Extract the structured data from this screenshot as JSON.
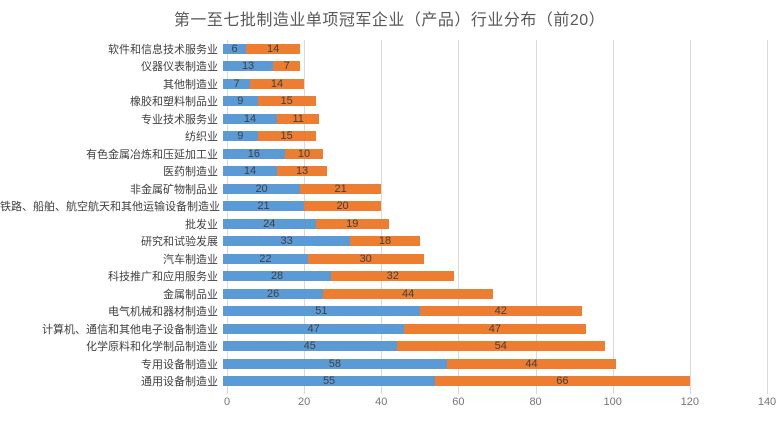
{
  "chart_data": {
    "type": "bar",
    "orientation": "horizontal",
    "stacked": true,
    "title": "第一至七批制造业单项冠军企业（产品）行业分布（前20）",
    "categories": [
      "软件和信息技术服务业",
      "仪器仪表制造业",
      "其他制造业",
      "橡胶和塑料制品业",
      "专业技术服务业",
      "纺织业",
      "有色金属冶炼和压延加工业",
      "医药制造业",
      "非金属矿物制品业",
      "铁路、船舶、航空航天和其他运输设备制造业",
      "批发业",
      "研究和试验发展",
      "汽车制造业",
      "科技推广和应用服务业",
      "金属制品业",
      "电气机械和器材制造业",
      "计算机、通信和其他电子设备制造业",
      "化学原料和化学制品制造业",
      "专用设备制造业",
      "通用设备制造业"
    ],
    "series": [
      {
        "name": "series-1-blue",
        "color": "#5B9BD5",
        "values": [
          6,
          13,
          7,
          9,
          14,
          9,
          16,
          14,
          20,
          21,
          24,
          33,
          22,
          28,
          26,
          51,
          47,
          45,
          58,
          55
        ]
      },
      {
        "name": "series-2-orange",
        "color": "#ED7D31",
        "values": [
          14,
          7,
          14,
          15,
          11,
          15,
          10,
          13,
          21,
          20,
          19,
          18,
          30,
          32,
          44,
          42,
          47,
          54,
          44,
          66
        ]
      }
    ],
    "xlabel": "",
    "ylabel": "",
    "x_axis": {
      "min": 0,
      "max": 140,
      "tick_interval": 20,
      "ticks": [
        0,
        20,
        40,
        60,
        80,
        100,
        120,
        140
      ]
    },
    "grid": true,
    "legend": "none",
    "data_labels": true,
    "colors": {
      "gridline": "#d9d9d9",
      "title_text": "#595959",
      "category_text": "#404040",
      "data_label_text": "#404040",
      "axis_tick_text": "#757575",
      "background": "#ffffff"
    }
  }
}
